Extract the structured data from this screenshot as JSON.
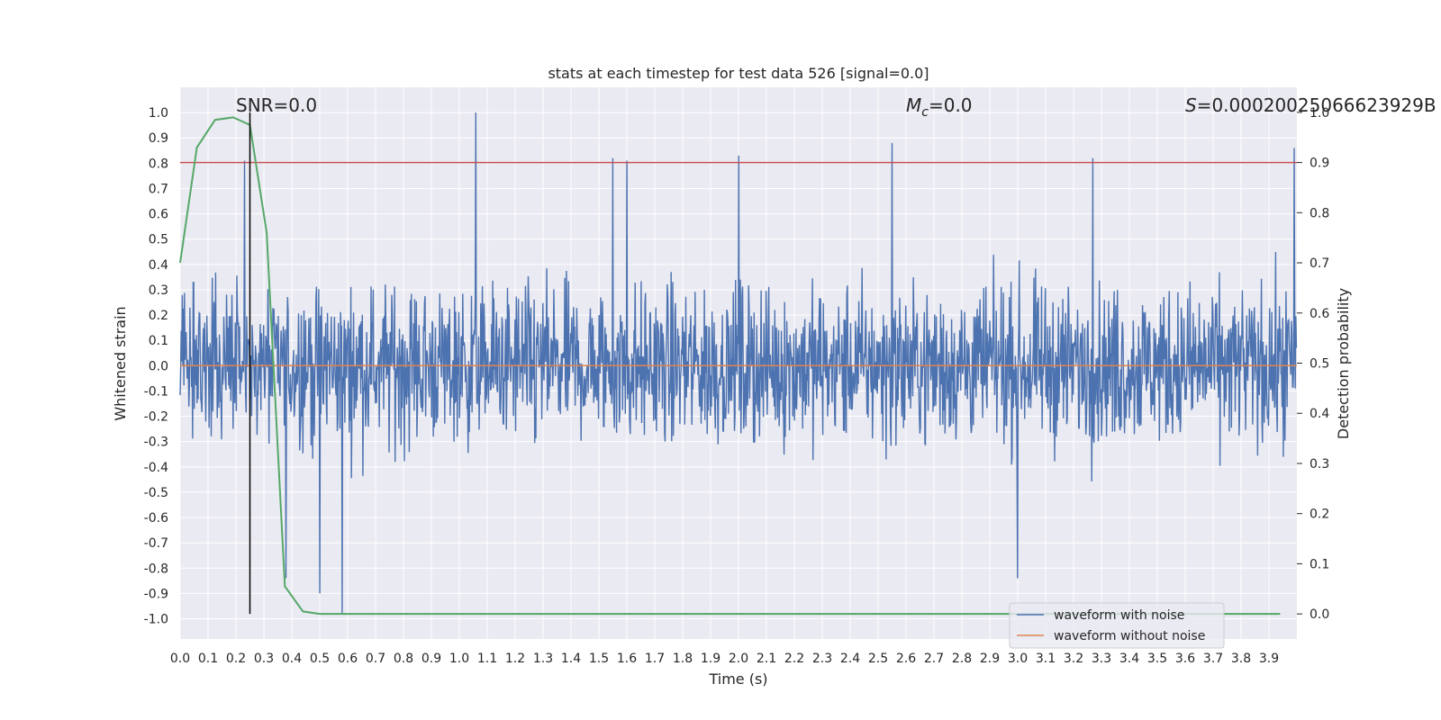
{
  "chart_data": {
    "type": "line",
    "title": "stats at each timestep for test data 526 [signal=0.0]",
    "xlabel": "Time (s)",
    "ylabel": "Whitened strain",
    "y2label": "Detection probability",
    "xlim": [
      0.0,
      4.0
    ],
    "ylim": [
      -1.08,
      1.1
    ],
    "y2lim": [
      -0.05,
      1.05
    ],
    "x_ticks": [
      "0.0",
      "0.1",
      "0.2",
      "0.3",
      "0.4",
      "0.5",
      "0.6",
      "0.7",
      "0.8",
      "0.9",
      "1.0",
      "1.1",
      "1.2",
      "1.3",
      "1.4",
      "1.5",
      "1.6",
      "1.7",
      "1.8",
      "1.9",
      "2.0",
      "2.1",
      "2.2",
      "2.3",
      "2.4",
      "2.5",
      "2.6",
      "2.7",
      "2.8",
      "2.9",
      "3.0",
      "3.1",
      "3.2",
      "3.3",
      "3.4",
      "3.5",
      "3.6",
      "3.7",
      "3.8",
      "3.9"
    ],
    "y_ticks": [
      "-1.0",
      "-0.9",
      "-0.8",
      "-0.7",
      "-0.6",
      "-0.5",
      "-0.4",
      "-0.3",
      "-0.2",
      "-0.1",
      "0.0",
      "0.1",
      "0.2",
      "0.3",
      "0.4",
      "0.5",
      "0.6",
      "0.7",
      "0.8",
      "0.9",
      "1.0"
    ],
    "y2_ticks": [
      "0.0",
      "0.1",
      "0.2",
      "0.3",
      "0.4",
      "0.5",
      "0.6",
      "0.7",
      "0.8",
      "0.9",
      "1.0"
    ],
    "grid": true,
    "legend_position": "lower-right",
    "annotations": {
      "snr": "SNR=0.0",
      "mc_symbol": "M",
      "mc_sub": "c",
      "mc_value": "=0.0",
      "s_symbol": "S",
      "s_value": "=0.00020025066623929B"
    },
    "series": [
      {
        "name": "waveform with noise",
        "axis": "left",
        "color": "#4c72b0",
        "style": "dense noise between about -1.0 and 1.0",
        "x_range": [
          0.0,
          4.0
        ],
        "peaks": [
          {
            "x": 1.06,
            "y": 1.0
          },
          {
            "x": 0.23,
            "y": 0.81
          },
          {
            "x": 2.0,
            "y": 0.83
          },
          {
            "x": 2.55,
            "y": 0.88
          },
          {
            "x": 1.55,
            "y": 0.82
          },
          {
            "x": 1.6,
            "y": 0.81
          },
          {
            "x": 3.27,
            "y": 0.82
          },
          {
            "x": 3.99,
            "y": 0.86
          },
          {
            "x": 0.58,
            "y": -0.98
          },
          {
            "x": 0.5,
            "y": -0.9
          },
          {
            "x": 3.0,
            "y": -0.84
          },
          {
            "x": 0.38,
            "y": -0.84
          }
        ]
      },
      {
        "name": "waveform without noise",
        "axis": "left",
        "color": "#dd8452",
        "x": [
          0.0,
          4.0
        ],
        "y": [
          0.0,
          0.0
        ]
      },
      {
        "name": "detection probability",
        "axis": "right",
        "color": "#55a868",
        "x": [
          0.0,
          0.06,
          0.125,
          0.19,
          0.25,
          0.31,
          0.375,
          0.44,
          0.5,
          0.56,
          0.625,
          1.0,
          2.0,
          3.0,
          3.94
        ],
        "y": [
          0.7,
          0.93,
          0.985,
          0.99,
          0.975,
          0.76,
          0.055,
          0.005,
          0.0,
          0.0,
          0.0,
          0.0,
          0.0,
          0.0,
          0.0
        ]
      }
    ],
    "threshold_line": {
      "axis": "right",
      "y": 0.9,
      "color": "#c44e52"
    },
    "vertical_marker": {
      "x": 0.25,
      "y_from": 0.0,
      "y_to": 1.0,
      "color": "#000000"
    }
  }
}
